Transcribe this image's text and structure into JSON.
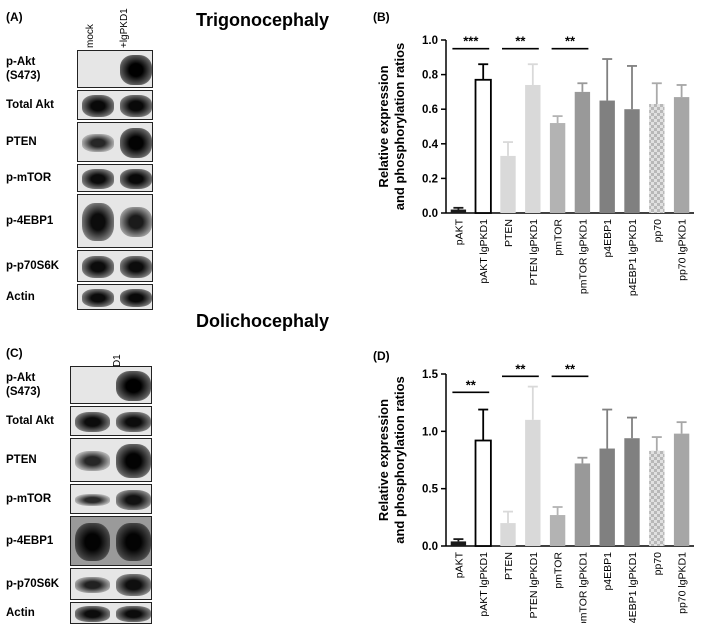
{
  "titles": {
    "top": "Trigonocephaly",
    "bottom": "Dolichocephaly"
  },
  "panels": {
    "A": "(A)",
    "B": "(B)",
    "C": "(C)",
    "D": "(D)"
  },
  "blots": {
    "lanes": [
      "mock",
      "+lgPKD1"
    ],
    "A": {
      "rows": [
        {
          "label": "p-Akt (S473)",
          "intensity": [
            0.0,
            1.0
          ]
        },
        {
          "label": "Total Akt",
          "intensity": [
            0.85,
            0.85
          ]
        },
        {
          "label": "PTEN",
          "intensity": [
            0.35,
            0.95
          ]
        },
        {
          "label": "p-mTOR",
          "intensity": [
            0.8,
            0.85
          ]
        },
        {
          "label": "p-4EBP1",
          "intensity": [
            0.8,
            0.55
          ]
        },
        {
          "label": "p-p70S6K",
          "intensity": [
            0.8,
            0.8
          ]
        },
        {
          "label": "Actin",
          "intensity": [
            0.8,
            0.85
          ]
        }
      ]
    },
    "C": {
      "rows": [
        {
          "label": "p-Akt (S473)",
          "intensity": [
            0.0,
            1.0
          ]
        },
        {
          "label": "Total Akt",
          "intensity": [
            0.8,
            0.8
          ]
        },
        {
          "label": "PTEN",
          "intensity": [
            0.35,
            0.95
          ]
        },
        {
          "label": "p-mTOR",
          "intensity": [
            0.3,
            0.7
          ]
        },
        {
          "label": "p-4EBP1",
          "intensity": [
            0.95,
            0.95
          ]
        },
        {
          "label": "p-p70S6K",
          "intensity": [
            0.45,
            0.75
          ]
        },
        {
          "label": "Actin",
          "intensity": [
            0.8,
            0.8
          ]
        }
      ]
    }
  },
  "chart_data": [
    {
      "panel": "B",
      "type": "bar",
      "ylabel": "Relative expression and phosphorylation ratios",
      "ylabel_lines": [
        "Relative expression",
        "and phosphorylation ratios"
      ],
      "ylim": [
        0,
        1.0
      ],
      "yticks": [
        "0.0",
        "0.2",
        "0.4",
        "0.6",
        "0.8",
        "1.0"
      ],
      "ytick_values": [
        0,
        0.2,
        0.4,
        0.6,
        0.8,
        1.0
      ],
      "categories": [
        "pAKT",
        "pAKT lgPKD1",
        "PTEN",
        "PTEN lgPKD1",
        "pmTOR",
        "pmTOR lgPKD1",
        "p4EBP1",
        "p4EBP1 lgPKD1",
        "pp70",
        "pp70 lgPKD1"
      ],
      "values": [
        0.02,
        0.77,
        0.33,
        0.74,
        0.52,
        0.7,
        0.65,
        0.6,
        0.63,
        0.67
      ],
      "errors": [
        0.01,
        0.09,
        0.08,
        0.12,
        0.04,
        0.05,
        0.24,
        0.25,
        0.12,
        0.07
      ],
      "colors": [
        "#1a1a1a",
        "#ffffff",
        "#d9d9d9",
        "#d9d9d9",
        "#b3b3b3",
        "#999999",
        "#808080",
        "#808080",
        "pattern-check",
        "#a6a6a6"
      ],
      "significance": [
        {
          "from": 0,
          "to": 1,
          "label": "***",
          "y": 0.95
        },
        {
          "from": 2,
          "to": 3,
          "label": "**",
          "y": 0.95
        },
        {
          "from": 4,
          "to": 5,
          "label": "**",
          "y": 0.95
        }
      ]
    },
    {
      "panel": "D",
      "type": "bar",
      "ylabel": "Relative expression and phosphorylation ratios",
      "ylabel_lines": [
        "Relative expression",
        "and phosphorylation ratios"
      ],
      "ylim": [
        0,
        1.5
      ],
      "yticks": [
        "0.0",
        "0.5",
        "1.0",
        "1.5"
      ],
      "ytick_values": [
        0,
        0.5,
        1.0,
        1.5
      ],
      "categories": [
        "pAKT",
        "pAKT lgPKD1",
        "PTEN",
        "PTEN lgPKD1",
        "pmTOR",
        "pmTOR lgPKD1",
        "p4EBP1",
        "p4EBP1 lgPKD1",
        "pp70",
        "pp70 lgPKD1"
      ],
      "values": [
        0.04,
        0.92,
        0.2,
        1.1,
        0.27,
        0.72,
        0.85,
        0.94,
        0.83,
        0.98
      ],
      "errors": [
        0.02,
        0.27,
        0.1,
        0.29,
        0.07,
        0.05,
        0.34,
        0.18,
        0.12,
        0.1
      ],
      "colors": [
        "#1a1a1a",
        "#ffffff",
        "#d9d9d9",
        "#d9d9d9",
        "#b3b3b3",
        "#999999",
        "#808080",
        "#808080",
        "pattern-check",
        "#a6a6a6"
      ],
      "significance": [
        {
          "from": 0,
          "to": 1,
          "label": "**",
          "y": 1.34
        },
        {
          "from": 2,
          "to": 3,
          "label": "**",
          "y": 1.48
        },
        {
          "from": 4,
          "to": 5,
          "label": "**",
          "y": 1.48
        }
      ]
    }
  ]
}
